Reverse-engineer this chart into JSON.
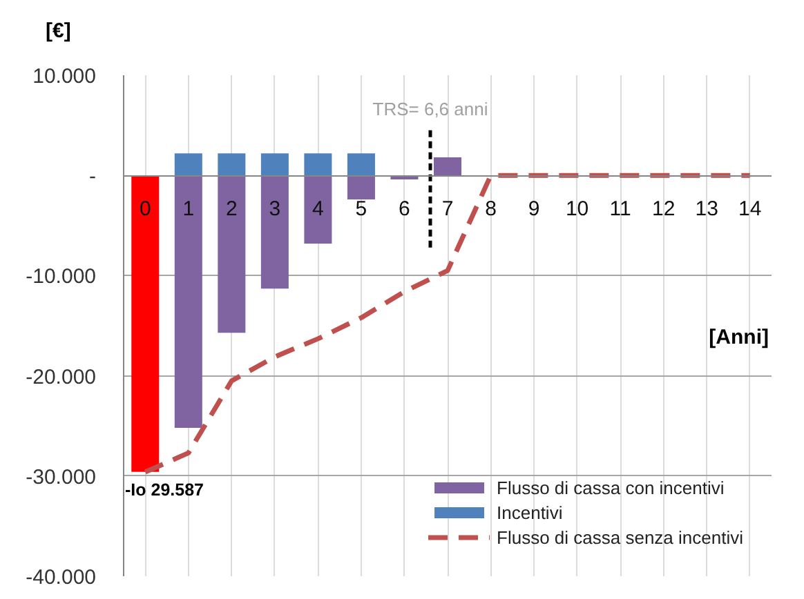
{
  "chart_data": {
    "type": "bar",
    "stacked": true,
    "x": [
      0,
      1,
      2,
      3,
      4,
      5,
      6,
      7,
      8,
      9,
      10,
      11,
      12,
      13,
      14
    ],
    "xlim": [
      -0.5,
      14.5
    ],
    "xticks": [
      0,
      1,
      2,
      3,
      4,
      5,
      6,
      7,
      8,
      9,
      10,
      11,
      12,
      13,
      14
    ],
    "xlabel": "[Anni]",
    "ylabel": "[€]",
    "ylim": [
      -40000,
      10000
    ],
    "yticks": [
      {
        "value": 10000,
        "label": "10.000"
      },
      {
        "value": 0,
        "label": "-"
      },
      {
        "value": -10000,
        "label": "-10.000"
      },
      {
        "value": -20000,
        "label": "-20.000"
      },
      {
        "value": -30000,
        "label": "-30.000"
      },
      {
        "value": -40000,
        "label": "-40.000"
      }
    ],
    "grid": true,
    "legend": "bottom right",
    "series": [
      {
        "name": "Flusso di cassa con incentivi",
        "color": "#8064a2",
        "colors": [
          "#ff0000",
          "#8064a2",
          "#8064a2",
          "#8064a2",
          "#8064a2",
          "#8064a2",
          "#8064a2",
          "#8064a2",
          "#8064a2",
          "#8064a2",
          "#8064a2",
          "#8064a2",
          "#8064a2",
          "#8064a2",
          "#8064a2"
        ],
        "values": [
          -29587,
          -25200,
          -15700,
          -11300,
          -6800,
          -2400,
          -400,
          1800,
          null,
          null,
          null,
          null,
          null,
          null,
          null
        ],
        "value_labels": [
          "-Io 29.587",
          null,
          null,
          null,
          null,
          null,
          null,
          null,
          null,
          null,
          null,
          null,
          null,
          null,
          null
        ]
      },
      {
        "name": "Incentivi",
        "color": "#4f81bd",
        "values": [
          null,
          2200,
          2200,
          2200,
          2200,
          2200,
          null,
          null,
          null,
          null,
          null,
          null,
          null,
          null,
          null
        ]
      },
      {
        "name": "Flusso di cassa senza incentivi",
        "type": "line",
        "color": "#c0504d",
        "line_style": "dashed",
        "marker": "none",
        "values": [
          -29600,
          -27700,
          -20500,
          -18100,
          -16300,
          -14200,
          -11600,
          -9500,
          0,
          0,
          0,
          0,
          0,
          0,
          0
        ]
      }
    ],
    "ref_lines": [
      {
        "axis": "x",
        "value": 6.6,
        "label": "TRS= 6,6 anni",
        "color": "#000000",
        "line_style": "dashed"
      }
    ]
  }
}
